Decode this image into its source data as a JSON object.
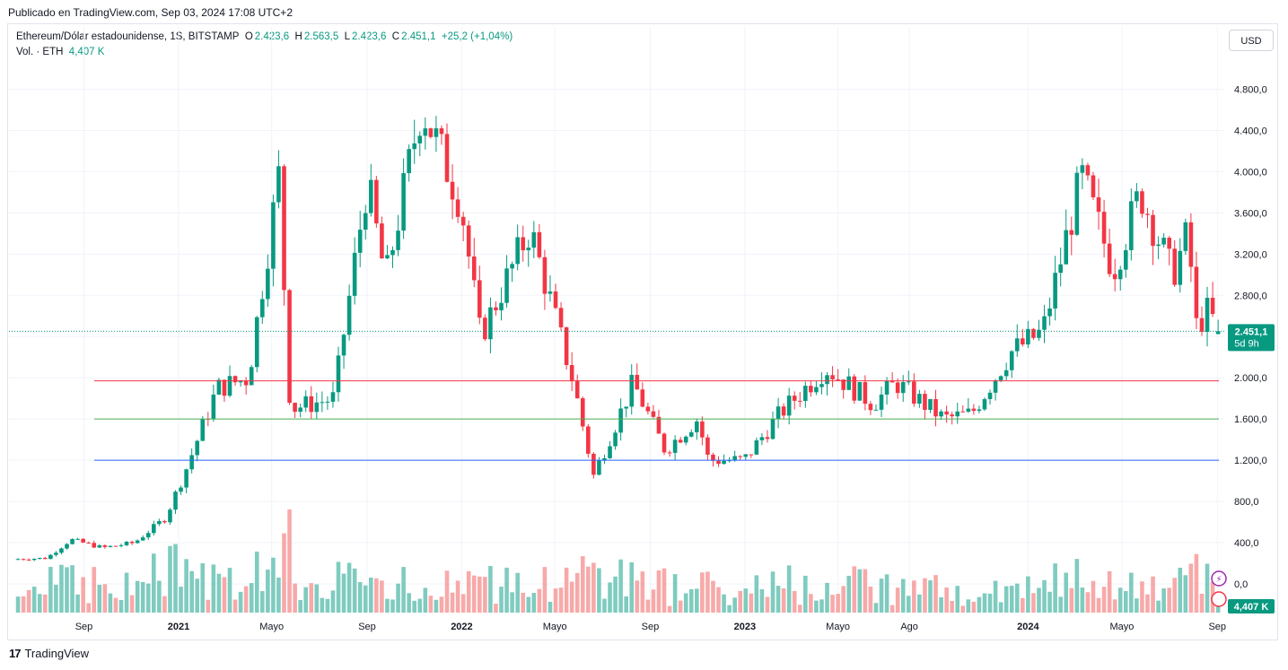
{
  "header": {
    "published": "Publicado en TradingView.com, Sep 03, 2024 17:08 UTC+2"
  },
  "legend": {
    "symbol": "Ethereum/Dólar estadounidense, 1S, BITSTAMP",
    "o_label": "O",
    "o_value": "2.423,6",
    "h_label": "H",
    "h_value": "2.563,5",
    "l_label": "L",
    "l_value": "2.423,6",
    "c_label": "C",
    "c_value": "2.451,1",
    "change": "+25,2 (+1,04%)",
    "vol_label": "Vol. · ETH",
    "vol_value": "4,407 K"
  },
  "currency_button": "USD",
  "footer": {
    "brand": "TradingView",
    "logo_glyph": "17"
  },
  "colors": {
    "up": "#089981",
    "down": "#f23645",
    "vol_up": "#7fcbbf",
    "vol_down": "#f7a9a9",
    "line_red": "#f23645",
    "line_green": "#4caf50",
    "line_blue": "#2962ff",
    "grid": "#f0f3fa"
  },
  "chart_data": {
    "type": "candlestick",
    "ylim": [
      0,
      5300
    ],
    "y_ticks": [
      0,
      400,
      800,
      1200,
      1600,
      2000,
      2400,
      2800,
      3200,
      3600,
      4000,
      4400,
      4800
    ],
    "y_tick_labels": [
      "0,0",
      "400,0",
      "800,0",
      "1.200,0",
      "1.600,0",
      "2.000,0",
      "2.400,0",
      "2.800,0",
      "3.200,0",
      "3.600,0",
      "4.000,0",
      "4.400,0",
      "4.800,0"
    ],
    "x_labels": [
      {
        "text": "Sep",
        "date": "2020-09-01",
        "bold": false
      },
      {
        "text": "2021",
        "date": "2021-01-01",
        "bold": true
      },
      {
        "text": "Mayo",
        "date": "2021-05-01",
        "bold": false
      },
      {
        "text": "Sep",
        "date": "2021-09-01",
        "bold": false
      },
      {
        "text": "2022",
        "date": "2022-01-01",
        "bold": true
      },
      {
        "text": "Mayo",
        "date": "2022-05-01",
        "bold": false
      },
      {
        "text": "Sep",
        "date": "2022-09-01",
        "bold": false
      },
      {
        "text": "2023",
        "date": "2023-01-01",
        "bold": true
      },
      {
        "text": "Mayo",
        "date": "2023-05-01",
        "bold": false
      },
      {
        "text": "Ago",
        "date": "2023-08-01",
        "bold": false
      },
      {
        "text": "2024",
        "date": "2024-01-01",
        "bold": true
      },
      {
        "text": "Mayo",
        "date": "2024-05-01",
        "bold": false
      },
      {
        "text": "Sep",
        "date": "2024-09-01",
        "bold": false
      }
    ],
    "horizontal_lines": [
      {
        "price": 1970,
        "color": "red"
      },
      {
        "price": 1600,
        "color": "green"
      },
      {
        "price": 1200,
        "color": "blue"
      }
    ],
    "last_price": 2451.1,
    "last_price_label": "2.451,1",
    "countdown_label": "5d 9h",
    "volume_label": "4,407 K",
    "path_points": [
      {
        "date": "2020-06-01",
        "price": 240
      },
      {
        "date": "2020-07-15",
        "price": 250
      },
      {
        "date": "2020-08-15",
        "price": 430
      },
      {
        "date": "2020-09-25",
        "price": 350
      },
      {
        "date": "2020-11-05",
        "price": 400
      },
      {
        "date": "2020-12-15",
        "price": 640
      },
      {
        "date": "2021-01-10",
        "price": 1100
      },
      {
        "date": "2021-02-20",
        "price": 1900
      },
      {
        "date": "2021-04-01",
        "price": 2000
      },
      {
        "date": "2021-05-10",
        "price": 3950
      },
      {
        "date": "2021-05-25",
        "price": 1700
      },
      {
        "date": "2021-07-20",
        "price": 1800
      },
      {
        "date": "2021-09-01",
        "price": 3900
      },
      {
        "date": "2021-09-25",
        "price": 2950
      },
      {
        "date": "2021-11-10",
        "price": 4650
      },
      {
        "date": "2021-12-31",
        "price": 3700
      },
      {
        "date": "2022-01-25",
        "price": 2400
      },
      {
        "date": "2022-03-30",
        "price": 3450
      },
      {
        "date": "2022-05-25",
        "price": 1950
      },
      {
        "date": "2022-06-20",
        "price": 1050
      },
      {
        "date": "2022-08-10",
        "price": 1950
      },
      {
        "date": "2022-09-20",
        "price": 1300
      },
      {
        "date": "2022-11-01",
        "price": 1600
      },
      {
        "date": "2022-11-15",
        "price": 1200
      },
      {
        "date": "2022-12-31",
        "price": 1200
      },
      {
        "date": "2023-02-15",
        "price": 1650
      },
      {
        "date": "2023-04-15",
        "price": 2100
      },
      {
        "date": "2023-06-15",
        "price": 1750
      },
      {
        "date": "2023-07-15",
        "price": 1950
      },
      {
        "date": "2023-09-15",
        "price": 1600
      },
      {
        "date": "2023-10-20",
        "price": 1650
      },
      {
        "date": "2023-12-10",
        "price": 2250
      },
      {
        "date": "2024-01-20",
        "price": 2450
      },
      {
        "date": "2024-03-10",
        "price": 3950
      },
      {
        "date": "2024-04-20",
        "price": 3050
      },
      {
        "date": "2024-05-25",
        "price": 3800
      },
      {
        "date": "2024-07-05",
        "price": 3000
      },
      {
        "date": "2024-07-25",
        "price": 3400
      },
      {
        "date": "2024-08-05",
        "price": 2500
      },
      {
        "date": "2024-08-20",
        "price": 2650
      },
      {
        "date": "2024-09-03",
        "price": 2451
      }
    ]
  }
}
